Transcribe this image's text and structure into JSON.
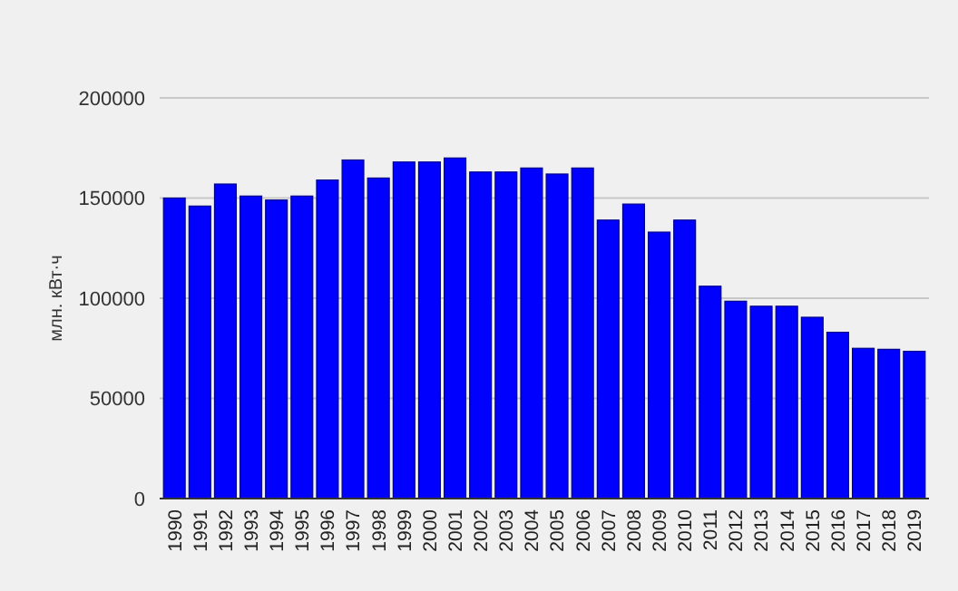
{
  "chart_data": {
    "type": "bar",
    "ylabel": "млн. кВт·ч",
    "categories": [
      "1990",
      "1991",
      "1992",
      "1993",
      "1994",
      "1995",
      "1996",
      "1997",
      "1998",
      "1999",
      "2000",
      "2001",
      "2002",
      "2003",
      "2004",
      "2005",
      "2006",
      "2007",
      "2008",
      "2009",
      "2010",
      "2011",
      "2012",
      "2013",
      "2014",
      "2015",
      "2016",
      "2017",
      "2018",
      "2019"
    ],
    "values": [
      150000,
      146000,
      157000,
      151000,
      149000,
      151000,
      159000,
      169000,
      160000,
      168000,
      168000,
      170000,
      163000,
      163000,
      165000,
      162000,
      165000,
      139000,
      147000,
      133000,
      139000,
      106000,
      98500,
      96000,
      96000,
      90500,
      83000,
      75000,
      74500,
      73500
    ],
    "color": "#0000ff",
    "ylim": [
      0,
      200000
    ],
    "yticks": [
      0,
      50000,
      100000,
      150000,
      200000
    ],
    "grid": "y"
  }
}
